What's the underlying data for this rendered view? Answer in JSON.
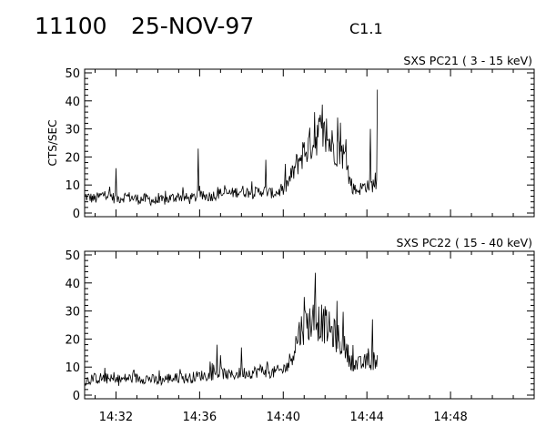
{
  "header": {
    "event_id": "11100",
    "date": "25-NOV-97",
    "flare_class": "C1.1"
  },
  "chart_data": [
    {
      "type": "line",
      "title": "SXS PC21  (  3 - 15 keV)",
      "ylabel": "CTS/SEC",
      "xlabel": "",
      "ylim": [
        0,
        50
      ],
      "yticks": [
        "0",
        "10",
        "20",
        "30",
        "40",
        "50"
      ],
      "xlim": [
        "14:30:30",
        "14:52:00"
      ],
      "xticks": [],
      "grid": false,
      "series": [
        {
          "x": [
            "14:30:30",
            "14:31:00",
            "14:31:30",
            "14:32:00",
            "14:32:30",
            "14:33:00",
            "14:33:30",
            "14:34:00",
            "14:34:30",
            "14:35:00",
            "14:35:30",
            "14:36:00",
            "14:36:30",
            "14:37:00",
            "14:37:30",
            "14:38:00",
            "14:38:30",
            "14:39:00",
            "14:39:30",
            "14:40:00",
            "14:40:15",
            "14:40:30",
            "14:40:45",
            "14:41:00",
            "14:41:15",
            "14:41:30",
            "14:41:45",
            "14:42:00",
            "14:42:15",
            "14:42:30",
            "14:42:45",
            "14:43:00",
            "14:43:15",
            "14:43:30",
            "14:43:45",
            "14:44:00",
            "14:44:15",
            "14:44:30"
          ],
          "y": [
            6,
            5,
            7,
            5,
            6,
            5,
            5,
            4,
            5,
            6,
            5,
            6,
            6,
            7,
            7,
            8,
            7,
            8,
            7,
            8,
            11,
            15,
            19,
            22,
            24,
            27,
            29,
            27,
            25,
            23,
            22,
            19,
            9,
            8,
            9,
            10,
            10,
            11
          ]
        }
      ],
      "spikes": [
        {
          "x": "14:32:00",
          "y": 16
        },
        {
          "x": "14:35:55",
          "y": 23
        },
        {
          "x": "14:39:10",
          "y": 19
        },
        {
          "x": "14:41:30",
          "y": 36
        },
        {
          "x": "14:44:10",
          "y": 30
        },
        {
          "x": "14:44:30",
          "y": 44
        }
      ]
    },
    {
      "type": "line",
      "title": "SXS PC22  ( 15 - 40 keV)",
      "ylabel": "",
      "xlabel": "",
      "ylim": [
        0,
        50
      ],
      "yticks": [
        "0",
        "10",
        "20",
        "30",
        "40",
        "50"
      ],
      "xlim": [
        "14:30:30",
        "14:52:00"
      ],
      "xticks": [
        "14:32",
        "14:36",
        "14:40",
        "14:44",
        "14:48"
      ],
      "grid": false,
      "series": [
        {
          "x": [
            "14:30:30",
            "14:31:00",
            "14:31:30",
            "14:32:00",
            "14:32:30",
            "14:33:00",
            "14:33:30",
            "14:34:00",
            "14:34:30",
            "14:35:00",
            "14:35:30",
            "14:36:00",
            "14:36:30",
            "14:37:00",
            "14:37:30",
            "14:38:00",
            "14:38:30",
            "14:39:00",
            "14:39:30",
            "14:40:00",
            "14:40:15",
            "14:40:30",
            "14:40:45",
            "14:41:00",
            "14:41:15",
            "14:41:30",
            "14:41:45",
            "14:42:00",
            "14:42:15",
            "14:42:30",
            "14:42:45",
            "14:43:00",
            "14:43:15",
            "14:43:30",
            "14:43:45",
            "14:44:00",
            "14:44:15",
            "14:44:30"
          ],
          "y": [
            5,
            6,
            6,
            5,
            6,
            6,
            6,
            5,
            6,
            6,
            6,
            7,
            7,
            8,
            7,
            8,
            8,
            9,
            8,
            9,
            11,
            16,
            22,
            25,
            26,
            27,
            26,
            25,
            23,
            21,
            19,
            16,
            12,
            11,
            11,
            12,
            12,
            13
          ]
        }
      ],
      "spikes": [
        {
          "x": "14:36:50",
          "y": 18
        },
        {
          "x": "14:38:00",
          "y": 17
        },
        {
          "x": "14:41:00",
          "y": 35
        },
        {
          "x": "14:41:30",
          "y": 34
        },
        {
          "x": "14:44:15",
          "y": 27
        }
      ]
    }
  ]
}
